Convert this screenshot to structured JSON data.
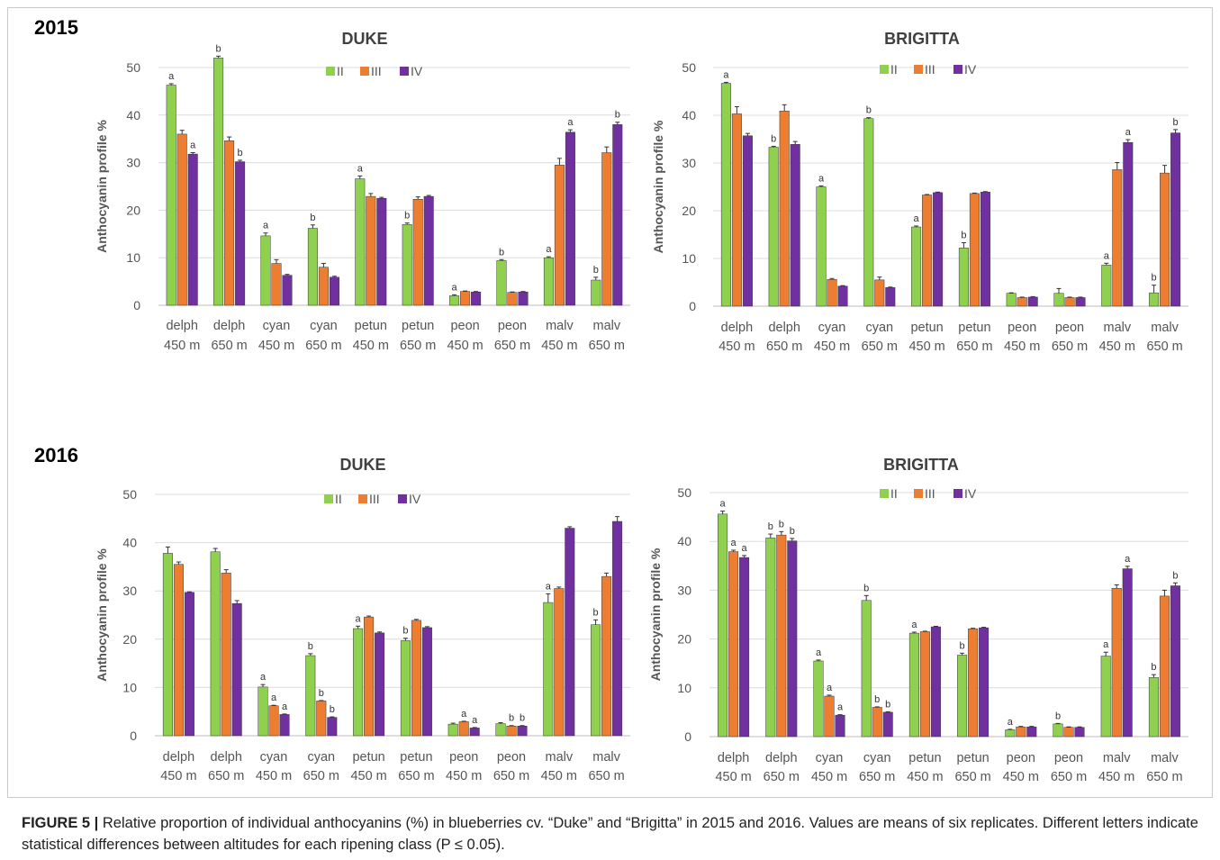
{
  "years": [
    "2015",
    "2016"
  ],
  "legend": [
    "II",
    "III",
    "IV"
  ],
  "colors": {
    "II": "#8fd14f",
    "III": "#ed7d31",
    "IV": "#7030a0",
    "grid": "#dcdcdc",
    "text": "#555555"
  },
  "caption": {
    "lead": "FIGURE 5 |",
    "text": " Relative proportion of individual anthocyanins (%) in blueberries cv. “Duke” and “Brigitta” in 2015 and 2016. Values are means of six replicates. Different letters indicate statistical differences between altitudes for each ripening class (P ≤ 0.05)."
  },
  "chart_data": [
    {
      "type": "bar",
      "year": "2015",
      "title": "DUKE",
      "ylabel": "Anthocyanin profile %",
      "ylim": [
        0,
        50
      ],
      "yticks": [
        0,
        10,
        20,
        30,
        40,
        50
      ],
      "grid": true,
      "legend": "top-center",
      "categories": [
        [
          "delph",
          "450 m"
        ],
        [
          "delph",
          "650 m"
        ],
        [
          "cyan",
          "450 m"
        ],
        [
          "cyan",
          "650 m"
        ],
        [
          "petun",
          "450 m"
        ],
        [
          "petun",
          "650 m"
        ],
        [
          "peon",
          "450 m"
        ],
        [
          "peon",
          "650 m"
        ],
        [
          "malv",
          "450 m"
        ],
        [
          "malv",
          "650 m"
        ]
      ],
      "series": [
        {
          "name": "II",
          "values": [
            46.3,
            52.0,
            14.6,
            16.2,
            26.6,
            17.0,
            2.0,
            9.4,
            10.0,
            5.3
          ],
          "errors": [
            0.3,
            0.4,
            0.6,
            0.7,
            0.6,
            0.3,
            0.2,
            0.2,
            0.2,
            0.6
          ],
          "letters": [
            "a",
            "b",
            "a",
            "b",
            "a",
            "b",
            "a",
            "b",
            "a",
            "b"
          ]
        },
        {
          "name": "III",
          "values": [
            36.0,
            34.6,
            8.8,
            8.0,
            22.9,
            22.3,
            2.9,
            2.7,
            29.5,
            32.1
          ],
          "errors": [
            0.8,
            0.8,
            0.8,
            0.8,
            0.6,
            0.5,
            0.1,
            0.1,
            1.4,
            1.2
          ],
          "letters": [
            "",
            "",
            "",
            "",
            "",
            "",
            "",
            "",
            "",
            ""
          ]
        },
        {
          "name": "IV",
          "values": [
            31.8,
            30.2,
            6.3,
            5.9,
            22.5,
            22.9,
            2.8,
            2.8,
            36.4,
            38.0
          ],
          "errors": [
            0.3,
            0.3,
            0.2,
            0.2,
            0.2,
            0.2,
            0.1,
            0.1,
            0.5,
            0.5
          ],
          "letters": [
            "a",
            "b",
            "",
            "",
            "",
            "",
            "",
            "",
            "a",
            "b"
          ]
        }
      ]
    },
    {
      "type": "bar",
      "year": "2015",
      "title": "BRIGITTA",
      "ylabel": "Anthocyanin profile %",
      "ylim": [
        0,
        50
      ],
      "yticks": [
        0,
        10,
        20,
        30,
        40,
        50
      ],
      "grid": true,
      "legend": "top-center",
      "categories": [
        [
          "delph",
          "450 m"
        ],
        [
          "delph",
          "650 m"
        ],
        [
          "cyan",
          "450 m"
        ],
        [
          "cyan",
          "650 m"
        ],
        [
          "petun",
          "450 m"
        ],
        [
          "petun",
          "650 m"
        ],
        [
          "peon",
          "450 m"
        ],
        [
          "peon",
          "650 m"
        ],
        [
          "malv",
          "450 m"
        ],
        [
          "malv",
          "650 m"
        ]
      ],
      "series": [
        {
          "name": "II",
          "values": [
            46.7,
            33.3,
            25.0,
            39.3,
            16.6,
            12.2,
            2.7,
            2.7,
            8.6,
            2.8
          ],
          "errors": [
            0.2,
            0.2,
            0.2,
            0.2,
            0.2,
            1.1,
            0.1,
            1.0,
            0.4,
            1.6
          ],
          "letters": [
            "a",
            "b",
            "a",
            "b",
            "a",
            "b",
            "",
            "",
            "a",
            "b"
          ]
        },
        {
          "name": "III",
          "values": [
            40.3,
            40.9,
            5.6,
            5.5,
            23.3,
            23.6,
            1.8,
            1.8,
            28.6,
            27.9
          ],
          "errors": [
            1.5,
            1.3,
            0.2,
            0.6,
            0.1,
            0.1,
            0.1,
            0.1,
            1.5,
            1.6
          ],
          "letters": [
            "",
            "",
            "",
            "",
            "",
            "",
            "",
            "",
            "",
            ""
          ]
        },
        {
          "name": "IV",
          "values": [
            35.7,
            33.9,
            4.2,
            3.9,
            23.8,
            23.9,
            1.9,
            1.8,
            34.3,
            36.3
          ],
          "errors": [
            0.5,
            0.6,
            0.1,
            0.1,
            0.1,
            0.1,
            0.1,
            0.1,
            0.6,
            0.7
          ],
          "letters": [
            "",
            "",
            "",
            "",
            "",
            "",
            "",
            "",
            "a",
            "b"
          ]
        }
      ]
    },
    {
      "type": "bar",
      "year": "2016",
      "title": "DUKE",
      "ylabel": "Anthocyanin profile %",
      "ylim": [
        0,
        50
      ],
      "yticks": [
        0,
        10,
        20,
        30,
        40,
        50
      ],
      "grid": true,
      "legend": "top-center",
      "categories": [
        [
          "delph",
          "450 m"
        ],
        [
          "delph",
          "650 m"
        ],
        [
          "cyan",
          "450 m"
        ],
        [
          "cyan",
          "650 m"
        ],
        [
          "petun",
          "450 m"
        ],
        [
          "petun",
          "650 m"
        ],
        [
          "peon",
          "450 m"
        ],
        [
          "peon",
          "650 m"
        ],
        [
          "malv",
          "450 m"
        ],
        [
          "malv",
          "650 m"
        ]
      ],
      "series": [
        {
          "name": "II",
          "values": [
            37.8,
            38.1,
            10.1,
            16.6,
            22.2,
            19.7,
            2.4,
            2.5,
            27.6,
            23.0
          ],
          "errors": [
            1.3,
            0.7,
            0.5,
            0.4,
            0.5,
            0.5,
            0.2,
            0.2,
            1.8,
            1.0
          ],
          "letters": [
            "",
            "",
            "a",
            "b",
            "a",
            "b",
            "",
            "",
            "a",
            "b"
          ]
        },
        {
          "name": "III",
          "values": [
            35.5,
            33.7,
            6.2,
            7.2,
            24.6,
            23.9,
            2.9,
            2.0,
            30.5,
            33.0
          ],
          "errors": [
            0.5,
            0.7,
            0.1,
            0.1,
            0.2,
            0.2,
            0.1,
            0.1,
            0.3,
            0.7
          ],
          "letters": [
            "",
            "",
            "a",
            "b",
            "",
            "",
            "a",
            "b",
            "",
            ""
          ]
        },
        {
          "name": "IV",
          "values": [
            29.7,
            27.4,
            4.4,
            3.8,
            21.3,
            22.4,
            1.6,
            2.0,
            43.0,
            44.4
          ],
          "errors": [
            0.1,
            0.6,
            0.1,
            0.1,
            0.2,
            0.2,
            0.1,
            0.1,
            0.3,
            1.0
          ],
          "letters": [
            "",
            "",
            "a",
            "b",
            "",
            "",
            "a",
            "b",
            "",
            ""
          ]
        }
      ]
    },
    {
      "type": "bar",
      "year": "2016",
      "title": "BRIGITTA",
      "ylabel": "Anthocyanin profile %",
      "ylim": [
        0,
        50
      ],
      "yticks": [
        0,
        10,
        20,
        30,
        40,
        50
      ],
      "grid": true,
      "legend": "top-center",
      "categories": [
        [
          "delph",
          "450 m"
        ],
        [
          "delph",
          "650 m"
        ],
        [
          "cyan",
          "450 m"
        ],
        [
          "cyan",
          "650 m"
        ],
        [
          "petun",
          "450 m"
        ],
        [
          "petun",
          "650 m"
        ],
        [
          "peon",
          "450 m"
        ],
        [
          "peon",
          "650 m"
        ],
        [
          "malv",
          "450 m"
        ],
        [
          "malv",
          "650 m"
        ]
      ],
      "series": [
        {
          "name": "II",
          "values": [
            45.6,
            40.7,
            15.5,
            27.9,
            21.2,
            16.7,
            1.4,
            2.6,
            16.5,
            12.1
          ],
          "errors": [
            0.6,
            0.8,
            0.2,
            1.0,
            0.2,
            0.4,
            0.1,
            0.1,
            0.8,
            0.6
          ],
          "letters": [
            "a",
            "b",
            "a",
            "b",
            "a",
            "b",
            "a",
            "b",
            "a",
            "b"
          ]
        },
        {
          "name": "III",
          "values": [
            37.9,
            41.3,
            8.3,
            6.0,
            21.5,
            22.1,
            2.0,
            1.9,
            30.4,
            28.8
          ],
          "errors": [
            0.3,
            0.7,
            0.2,
            0.1,
            0.1,
            0.1,
            0.1,
            0.1,
            0.7,
            1.2
          ],
          "letters": [
            "a",
            "b",
            "a",
            "b",
            "",
            "",
            "",
            "",
            "",
            ""
          ]
        },
        {
          "name": "IV",
          "values": [
            36.7,
            40.1,
            4.4,
            5.0,
            22.5,
            22.3,
            2.0,
            1.9,
            34.4,
            30.9
          ],
          "errors": [
            0.4,
            0.5,
            0.1,
            0.1,
            0.1,
            0.1,
            0.1,
            0.1,
            0.5,
            0.6
          ],
          "letters": [
            "a",
            "b",
            "a",
            "b",
            "",
            "",
            "",
            "",
            "a",
            "b"
          ]
        }
      ]
    }
  ]
}
